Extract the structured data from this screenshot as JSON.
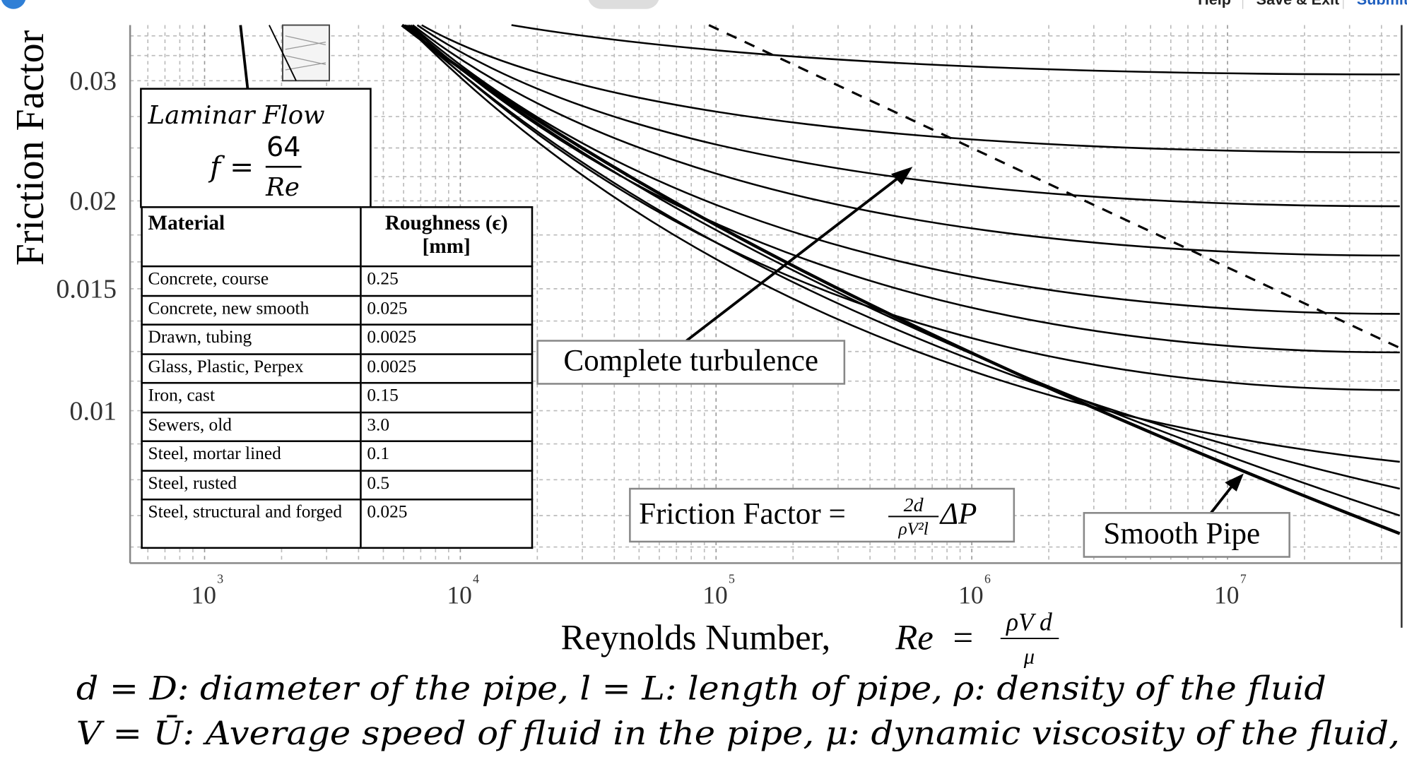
{
  "top_bar": {
    "help": "Help",
    "save_exit": "Save & Exit",
    "submit": "Submit"
  },
  "chart_image": {
    "y_axis_label": "Friction Factor",
    "y_tick_labels": [
      "0.03",
      "0.02",
      "0.015",
      "0.01"
    ],
    "x_tick_labels": [
      {
        "base": "10",
        "exponent": "3"
      },
      {
        "base": "10",
        "exponent": "4"
      },
      {
        "base": "10",
        "exponent": "5"
      },
      {
        "base": "10",
        "exponent": "6"
      },
      {
        "base": "10",
        "exponent": "7"
      }
    ],
    "x_axis_label": {
      "text": "Reynolds Number,",
      "symbol": "Re",
      "equals": "=",
      "numerator": "ρV d",
      "denominator": "μ"
    },
    "laminar_box": {
      "title": "Laminar Flow",
      "lhs": "f =",
      "numerator": "64",
      "denominator": "Re"
    },
    "friction_box": {
      "text": "Friction Factor =",
      "numerator": "2d",
      "denominator": "ρV²l",
      "rhs": "ΔP"
    },
    "annotations": {
      "complete_turbulence": "Complete turbulence",
      "smooth_pipe": "Smooth Pipe"
    },
    "table": {
      "header": {
        "material": "Material",
        "roughness": "Roughness (ϵ)",
        "unit": "[mm]"
      },
      "rows": [
        [
          "Concrete, course",
          "0.25"
        ],
        [
          "Concrete, new smooth",
          "0.025"
        ],
        [
          "Drawn, tubing",
          "0.0025"
        ],
        [
          "Glass, Plastic, Perpex",
          "0.0025"
        ],
        [
          "Iron, cast",
          "0.15"
        ],
        [
          "Sewers, old",
          "3.0"
        ],
        [
          "Steel, mortar lined",
          "0.1"
        ],
        [
          "Steel, rusted",
          "0.5"
        ],
        [
          "Steel, structural and forged",
          "0.025"
        ]
      ]
    }
  },
  "notes": [
    "d = D: diameter of the pipe, l = L: length of pipe, ρ: density of the fluid",
    "V = Ū: Average speed of fluid in the pipe, μ: dynamic viscosity of the fluid,"
  ]
}
